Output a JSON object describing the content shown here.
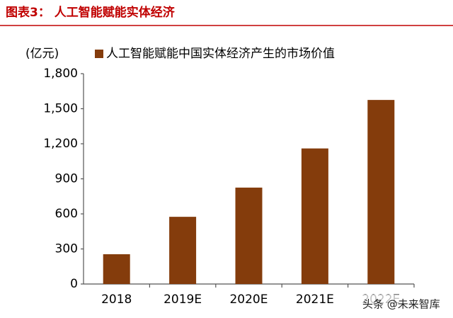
{
  "chart_data": {
    "type": "bar",
    "title": "图表3：  人工智能赋能实体经济",
    "unit_label": "(亿元)",
    "categories": [
      "2018",
      "2019E",
      "2020E",
      "2021E",
      "2022E"
    ],
    "series": [
      {
        "name": "人工智能赋能中国实体经济产生的市场价值",
        "color": "#843c0c",
        "values": [
          255,
          575,
          825,
          1160,
          1575
        ]
      }
    ],
    "ylim": [
      0,
      1800
    ],
    "yticks": [
      0,
      300,
      600,
      900,
      {
        "value": 1200,
        "label": "1,200"
      },
      {
        "value": 1500,
        "label": "1,500"
      },
      {
        "value": 1800,
        "label": "1,800"
      }
    ],
    "watermark": "头条 @未来智库"
  }
}
